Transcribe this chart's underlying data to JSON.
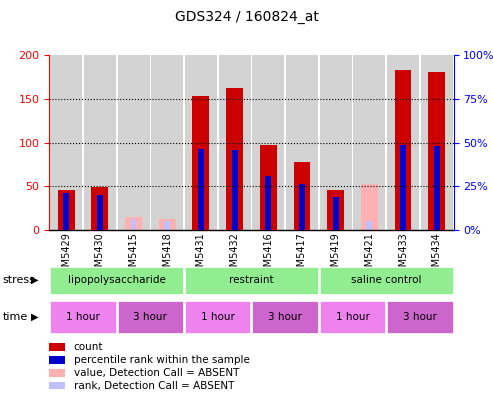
{
  "title": "GDS324 / 160824_at",
  "samples": [
    "GSM5429",
    "GSM5430",
    "GSM5415",
    "GSM5418",
    "GSM5431",
    "GSM5432",
    "GSM5416",
    "GSM5417",
    "GSM5419",
    "GSM5421",
    "GSM5433",
    "GSM5434"
  ],
  "count_values": [
    46,
    49,
    0,
    0,
    153,
    163,
    97,
    78,
    46,
    0,
    183,
    181
  ],
  "rank_values": [
    42,
    40,
    0,
    0,
    93,
    92,
    62,
    52,
    38,
    0,
    97,
    96
  ],
  "absent_value_values": [
    0,
    0,
    14,
    12,
    0,
    0,
    0,
    0,
    0,
    52,
    0,
    0
  ],
  "absent_rank_values": [
    0,
    0,
    12,
    10,
    0,
    0,
    0,
    0,
    0,
    10,
    0,
    0
  ],
  "ylim_left": [
    0,
    200
  ],
  "ylim_right": [
    0,
    100
  ],
  "yticks_left": [
    0,
    50,
    100,
    150,
    200
  ],
  "yticks_right": [
    0,
    25,
    50,
    75,
    100
  ],
  "ytick_labels_left": [
    "0",
    "50",
    "100",
    "150",
    "200"
  ],
  "ytick_labels_right": [
    "0%",
    "25%",
    "50%",
    "75%",
    "100%"
  ],
  "stress_groups": [
    {
      "label": "lipopolysaccharide",
      "start": 0,
      "end": 4
    },
    {
      "label": "restraint",
      "start": 4,
      "end": 8
    },
    {
      "label": "saline control",
      "start": 8,
      "end": 12
    }
  ],
  "time_groups": [
    {
      "label": "1 hour",
      "start": 0,
      "end": 2,
      "color": "#ee82ee"
    },
    {
      "label": "3 hour",
      "start": 2,
      "end": 4,
      "color": "#cc66cc"
    },
    {
      "label": "1 hour",
      "start": 4,
      "end": 6,
      "color": "#ee82ee"
    },
    {
      "label": "3 hour",
      "start": 6,
      "end": 8,
      "color": "#cc66cc"
    },
    {
      "label": "1 hour",
      "start": 8,
      "end": 10,
      "color": "#ee82ee"
    },
    {
      "label": "3 hour",
      "start": 10,
      "end": 12,
      "color": "#cc66cc"
    }
  ],
  "count_color": "#cc0000",
  "rank_color": "#0000cc",
  "absent_value_color": "#ffb0b0",
  "absent_rank_color": "#c0c0ff",
  "stress_color": "#90ee90",
  "bar_bg_color": "#d3d3d3",
  "legend_items": [
    {
      "color": "#cc0000",
      "label": "count"
    },
    {
      "color": "#0000cc",
      "label": "percentile rank within the sample"
    },
    {
      "color": "#ffb0b0",
      "label": "value, Detection Call = ABSENT"
    },
    {
      "color": "#c0c0ff",
      "label": "rank, Detection Call = ABSENT"
    }
  ]
}
